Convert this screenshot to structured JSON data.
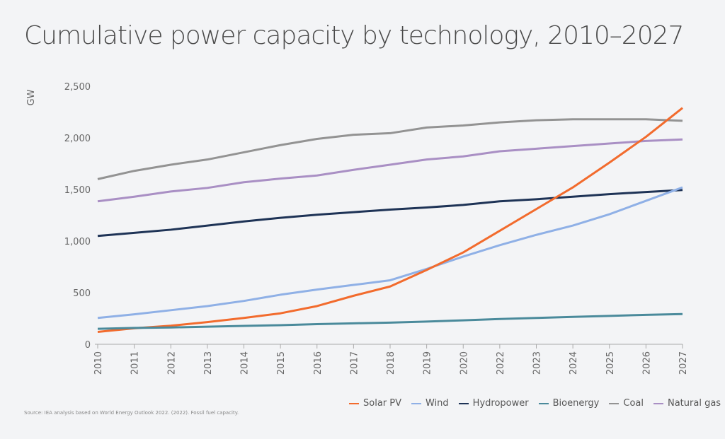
{
  "chart_data": {
    "type": "line",
    "title": "Cumulative power capacity by technology, 2010–2027",
    "ylabel": "GW",
    "xlabel": "",
    "ylim": [
      0,
      2500
    ],
    "yticks": [
      "0",
      "500",
      "1,000",
      "1,500",
      "2,000",
      "2,500"
    ],
    "ytick_values": [
      0,
      500,
      1000,
      1500,
      2000,
      2500
    ],
    "categories": [
      "2010",
      "2011",
      "2012",
      "2013",
      "2014",
      "2015",
      "2016",
      "2017",
      "2018",
      "2019",
      "2020",
      "2022",
      "2023",
      "2024",
      "2025",
      "2026",
      "2027"
    ],
    "grid": false,
    "legend_position": "bottom-right",
    "series": [
      {
        "name": "Solar PV",
        "color": "#f26b2d",
        "values": [
          120,
          155,
          180,
          215,
          255,
          300,
          370,
          470,
          560,
          720,
          890,
          1100,
          1310,
          1520,
          1760,
          2010,
          2290
        ]
      },
      {
        "name": "Wind",
        "color": "#8fb0e6",
        "values": [
          255,
          290,
          330,
          370,
          420,
          480,
          530,
          575,
          620,
          730,
          850,
          960,
          1060,
          1150,
          1260,
          1390,
          1520
        ]
      },
      {
        "name": "Hydropower",
        "color": "#1e3356",
        "values": [
          1050,
          1080,
          1110,
          1150,
          1190,
          1225,
          1255,
          1280,
          1305,
          1325,
          1350,
          1385,
          1405,
          1430,
          1455,
          1475,
          1495
        ]
      },
      {
        "name": "Bioenergy",
        "color": "#4a8a9b",
        "values": [
          150,
          158,
          163,
          170,
          178,
          185,
          195,
          203,
          210,
          220,
          232,
          245,
          255,
          265,
          275,
          285,
          293
        ]
      },
      {
        "name": "Coal",
        "color": "#939393",
        "values": [
          1600,
          1680,
          1740,
          1790,
          1860,
          1930,
          1990,
          2030,
          2045,
          2100,
          2120,
          2150,
          2170,
          2180,
          2180,
          2180,
          2165
        ]
      },
      {
        "name": "Natural gas",
        "color": "#a98fc4",
        "values": [
          1385,
          1430,
          1480,
          1515,
          1570,
          1605,
          1635,
          1690,
          1740,
          1790,
          1820,
          1870,
          1895,
          1920,
          1945,
          1970,
          1985
        ]
      }
    ]
  },
  "source": "Source: IEA analysis based on World Energy Outlook 2022. (2022). Fossil fuel capacity."
}
